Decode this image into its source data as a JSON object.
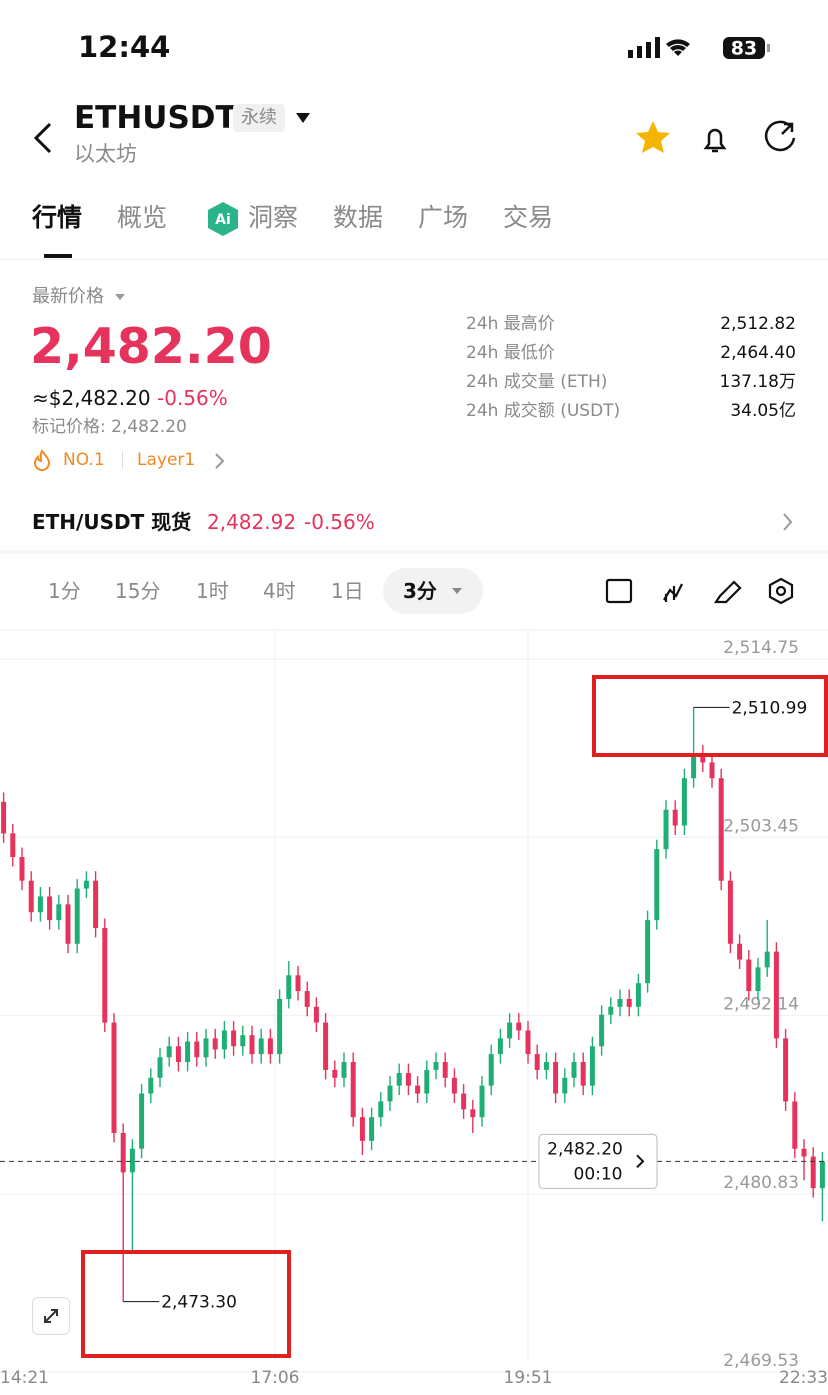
{
  "status_bar": {
    "time": "12:44",
    "battery": "83"
  },
  "header": {
    "symbol": "ETHUSDT",
    "badge": "永续",
    "subtitle": "以太坊"
  },
  "tabs": [
    "行情",
    "概览",
    "洞察",
    "数据",
    "广场",
    "交易"
  ],
  "price": {
    "label": "最新价格",
    "last": "2,482.20",
    "usd": "≈$2,482.20",
    "change": "-0.56%",
    "mark": "标记价格: 2,482.20",
    "rank": "NO.1",
    "tag": "Layer1"
  },
  "stats": [
    {
      "label": "24h 最高价",
      "value": "2,512.82"
    },
    {
      "label": "24h 最低价",
      "value": "2,464.40"
    },
    {
      "label": "24h 成交量 (ETH)",
      "value": "137.18万"
    },
    {
      "label": "24h 成交额 (USDT)",
      "value": "34.05亿"
    }
  ],
  "spot": {
    "label": "ETH/USDT 现货",
    "price": "2,482.92",
    "change": "-0.56%"
  },
  "intervals": [
    "1分",
    "15分",
    "1时",
    "4时",
    "1日",
    "3分"
  ],
  "chart_data": {
    "type": "candlestick",
    "up_color": "#1fae74",
    "down_color": "#e5335d",
    "grid": true,
    "xlim": [
      -14.35,
      525.65
    ],
    "ylim": [
      2469.6,
      2515.9
    ],
    "xticks": [
      {
        "value": 0,
        "label": "14:21"
      },
      {
        "value": 165,
        "label": "17:06"
      },
      {
        "value": 330,
        "label": "19:51"
      },
      {
        "value": 492,
        "label": "22:33"
      }
    ],
    "yticks": [
      {
        "value": 2514.75,
        "label": "2,514.75"
      },
      {
        "value": 2503.45,
        "label": "2,503.45"
      },
      {
        "value": 2492.14,
        "label": "2,492.14"
      },
      {
        "value": 2480.83,
        "label": "2,480.83"
      },
      {
        "value": 2469.53,
        "label": "2,469.53"
      }
    ],
    "x": [
      -12,
      -6,
      0,
      6,
      12,
      18,
      24,
      30,
      36,
      42,
      48,
      54,
      60,
      66,
      72,
      78,
      84,
      90,
      96,
      102,
      108,
      114,
      120,
      126,
      132,
      138,
      144,
      150,
      156,
      162,
      168,
      174,
      180,
      186,
      192,
      198,
      204,
      210,
      216,
      222,
      228,
      234,
      240,
      246,
      252,
      258,
      264,
      270,
      276,
      282,
      288,
      294,
      300,
      306,
      312,
      318,
      324,
      330,
      336,
      342,
      348,
      354,
      360,
      366,
      372,
      378,
      384,
      390,
      396,
      402,
      408,
      414,
      420,
      426,
      432,
      438,
      444,
      450,
      456,
      462,
      468,
      474,
      480,
      486,
      492,
      498,
      504,
      510,
      516,
      522
    ],
    "open": [
      2505,
      2503,
      2501.5,
      2500,
      2498,
      2499,
      2497.5,
      2498.5,
      2496,
      2499.5,
      2500,
      2497,
      2491,
      2484,
      2481.5,
      2483,
      2486.5,
      2487.5,
      2488.8,
      2489.5,
      2488.5,
      2489.8,
      2488.8,
      2490,
      2489.3,
      2490.5,
      2489.5,
      2490.2,
      2489,
      2490,
      2489,
      2492.5,
      2494,
      2493,
      2492,
      2491,
      2488,
      2487.5,
      2488.5,
      2485,
      2483.5,
      2485,
      2486,
      2487,
      2487.8,
      2487,
      2486.5,
      2488,
      2488.5,
      2487.5,
      2486.5,
      2485.5,
      2485,
      2487,
      2489,
      2490,
      2491,
      2490.5,
      2489,
      2488,
      2488.5,
      2486.5,
      2487.5,
      2488.5,
      2487,
      2489.5,
      2491.5,
      2492,
      2492.5,
      2492,
      2493.5,
      2497.5,
      2502,
      2504.5,
      2503.5,
      2506.5,
      2508,
      2507.5,
      2506.5,
      2500,
      2496,
      2495,
      2493,
      2494.5,
      2495.5,
      2490,
      2486,
      2483,
      2482.5,
      2480.5
    ],
    "high": [
      2505.6,
      2503.6,
      2502.1,
      2500.6,
      2499.6,
      2499.6,
      2499.1,
      2499.1,
      2500.1,
      2500.6,
      2500.6,
      2497.6,
      2491.6,
      2484.6,
      2483.6,
      2487.1,
      2488.1,
      2489.4,
      2490.1,
      2490.1,
      2490.4,
      2490.4,
      2490.6,
      2490.6,
      2491.1,
      2491.1,
      2490.8,
      2490.8,
      2490.6,
      2490.6,
      2493.1,
      2494.9,
      2494.6,
      2493.6,
      2492.6,
      2491.6,
      2488.6,
      2489.1,
      2489.1,
      2485.6,
      2485.6,
      2486.6,
      2487.6,
      2488.4,
      2488.4,
      2487.6,
      2488.6,
      2489.1,
      2489.1,
      2488.1,
      2487.1,
      2486.1,
      2487.6,
      2489.6,
      2490.6,
      2491.6,
      2491.6,
      2491.1,
      2489.6,
      2489.1,
      2489.1,
      2488.1,
      2489.1,
      2489.1,
      2490.1,
      2492.1,
      2492.6,
      2493.1,
      2493.1,
      2494.1,
      2498.1,
      2502.6,
      2505.1,
      2505.1,
      2507.1,
      2510.99,
      2508.6,
      2508.1,
      2507.1,
      2500.6,
      2496.6,
      2495.6,
      2495.1,
      2497.5,
      2496.1,
      2490.6,
      2486.6,
      2483.6,
      2483.1,
      2482.8
    ],
    "low": [
      2502.4,
      2500.9,
      2499.4,
      2497.4,
      2497.4,
      2496.9,
      2496.9,
      2495.4,
      2495.4,
      2498.9,
      2496.4,
      2490.4,
      2483.4,
      2473.3,
      2476.5,
      2482.4,
      2485.9,
      2486.9,
      2488.2,
      2487.9,
      2487.9,
      2488.2,
      2488.2,
      2488.7,
      2488.7,
      2488.9,
      2488.9,
      2488.4,
      2488.4,
      2488.4,
      2488.4,
      2491.9,
      2492.4,
      2491.4,
      2490.4,
      2487.4,
      2486.9,
      2486.9,
      2484.4,
      2482.6,
      2482.9,
      2484.4,
      2485.4,
      2486.4,
      2486.4,
      2485.9,
      2485.9,
      2487.4,
      2486.9,
      2485.9,
      2484.9,
      2484,
      2484.4,
      2486.4,
      2488.4,
      2489.4,
      2489.9,
      2488.4,
      2487.4,
      2487.4,
      2485.9,
      2485.9,
      2486.9,
      2486.4,
      2486.4,
      2488.9,
      2490.9,
      2491.4,
      2491.4,
      2491.4,
      2492.9,
      2496.9,
      2501.4,
      2502.9,
      2502.9,
      2505.9,
      2506.9,
      2505.9,
      2499.4,
      2495.4,
      2494.4,
      2492.4,
      2492.4,
      2493.9,
      2489.4,
      2485.4,
      2482.4,
      2481,
      2479.9,
      2478.4
    ],
    "close": [
      2503,
      2501.5,
      2500,
      2498,
      2499,
      2497.5,
      2498.5,
      2496,
      2499.5,
      2500,
      2497,
      2491,
      2484,
      2481.5,
      2483,
      2486.5,
      2487.5,
      2488.8,
      2489.5,
      2488.5,
      2489.8,
      2488.8,
      2490,
      2489.3,
      2490.5,
      2489.5,
      2490.2,
      2489,
      2490,
      2489,
      2492.5,
      2494,
      2493,
      2492,
      2491,
      2488,
      2487.5,
      2488.5,
      2485,
      2483.5,
      2485,
      2486,
      2487,
      2487.8,
      2487,
      2486.5,
      2488,
      2488.5,
      2487.5,
      2486.5,
      2485.5,
      2485,
      2487,
      2489,
      2490,
      2491,
      2490.5,
      2489,
      2488,
      2488.5,
      2486.5,
      2487.5,
      2488.5,
      2487,
      2489.5,
      2491.5,
      2492,
      2492.5,
      2492,
      2493.5,
      2497.5,
      2502,
      2504.5,
      2503.5,
      2506.5,
      2508,
      2507.5,
      2506.5,
      2500,
      2496,
      2495,
      2493,
      2494.5,
      2495.5,
      2490,
      2486,
      2483,
      2482.5,
      2480.5,
      2482.2
    ],
    "annotations": [
      {
        "value": 2510.99,
        "label": "2,510.99"
      },
      {
        "value": 2473.3,
        "label": "2,473.30"
      }
    ],
    "last_price": {
      "value": 2482.2,
      "label": "2,482.20"
    },
    "countdown": "00:10"
  }
}
